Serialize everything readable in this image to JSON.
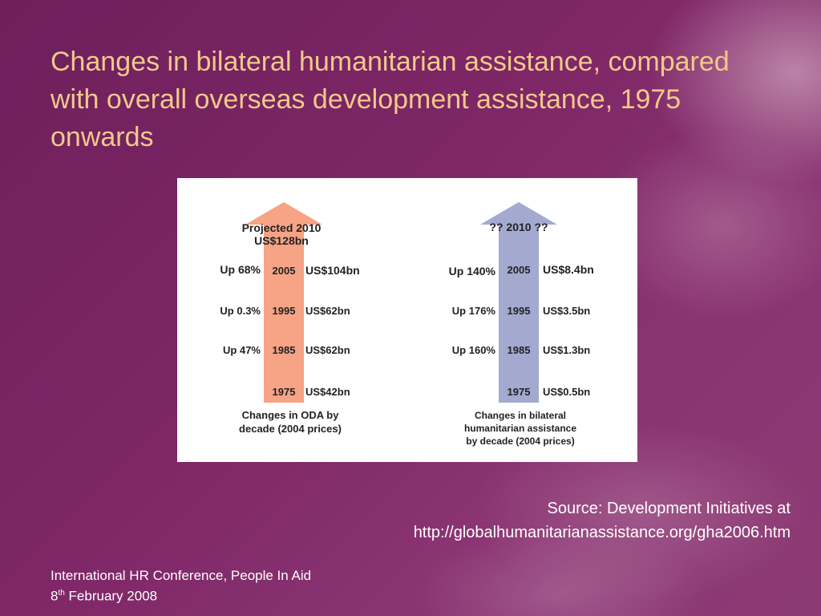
{
  "slide": {
    "title": "Changes in bilateral humanitarian assistance, compared with overall overseas development assistance, 1975 onwards",
    "source_line1": "Source: Development Initiatives at",
    "source_line2": "http://globalhumanitarianassistance.org/gha2006.htm",
    "footer_line1": "International HR Conference, People In Aid",
    "footer_day": "8",
    "footer_day_suffix": "th",
    "footer_rest": " February 2008"
  },
  "colors": {
    "oda_arrow": "#f6a386",
    "humanitarian_arrow": "#a3a9cf",
    "title": "#f0c98a"
  },
  "diagrams": [
    {
      "top_label_line1": "Projected 2010",
      "top_label_line2": "US$128bn",
      "caption_line1": "Changes in ODA by",
      "caption_line2": "decade (2004 prices)",
      "caption_line3": "",
      "rows": [
        {
          "change": "Up 68%",
          "year": "2005",
          "value": "US$104bn"
        },
        {
          "change": "Up 0.3%",
          "year": "1995",
          "value": "US$62bn"
        },
        {
          "change": "Up 47%",
          "year": "1985",
          "value": "US$62bn"
        },
        {
          "change": "",
          "year": "1975",
          "value": "US$42bn"
        }
      ]
    },
    {
      "top_label_line1": "?? 2010 ??",
      "top_label_line2": "",
      "caption_line1": "Changes in bilateral",
      "caption_line2": "humanitarian assistance",
      "caption_line3": "by decade (2004 prices)",
      "rows": [
        {
          "change": "Up 140%",
          "year": "2005",
          "value": "US$8.4bn"
        },
        {
          "change": "Up 176%",
          "year": "1995",
          "value": "US$3.5bn"
        },
        {
          "change": "Up 160%",
          "year": "1985",
          "value": "US$1.3bn"
        },
        {
          "change": "",
          "year": "1975",
          "value": "US$0.5bn"
        }
      ]
    }
  ]
}
